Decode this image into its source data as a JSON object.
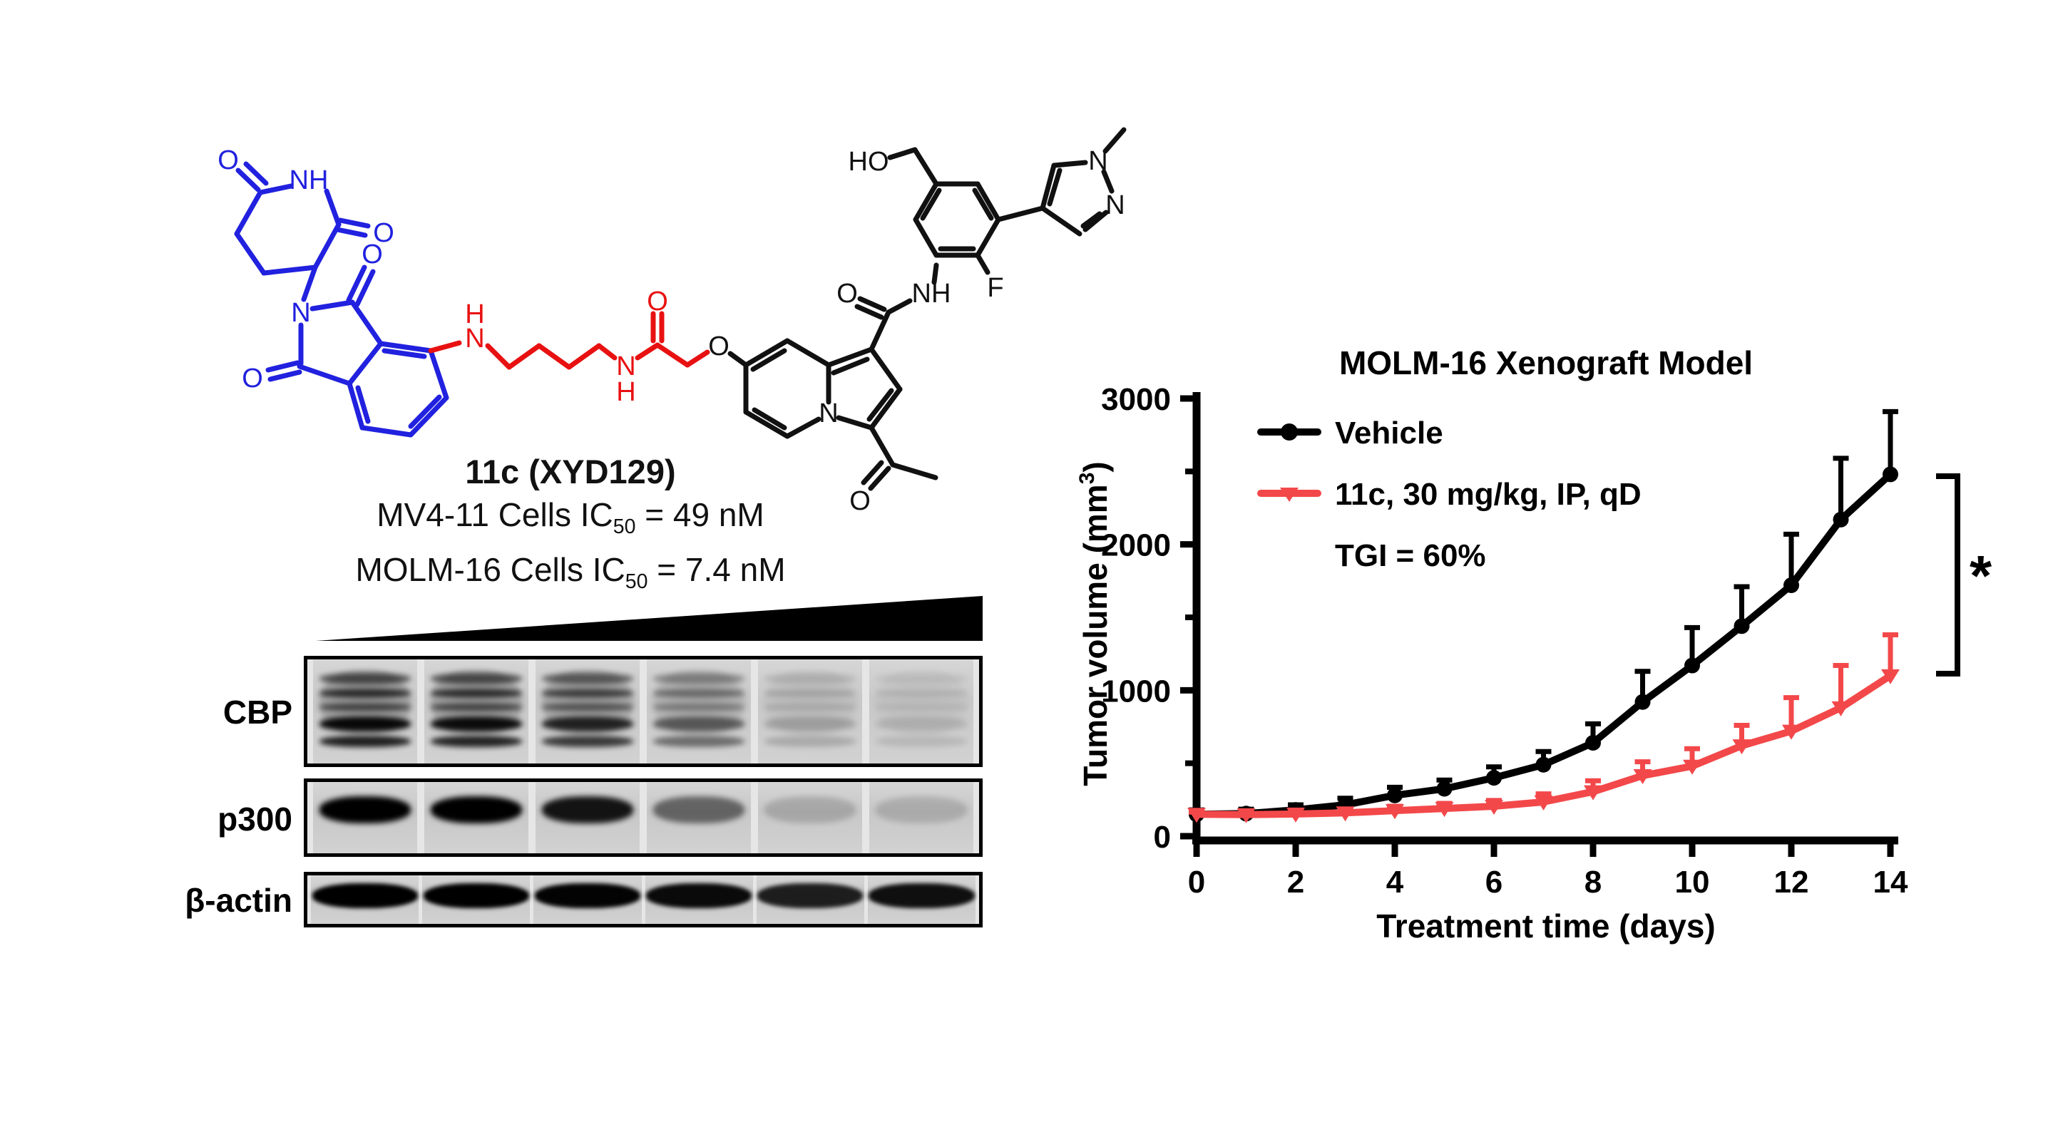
{
  "figure": {
    "compound": {
      "title": "11c (XYD129)",
      "ic50_lines": [
        {
          "prefix": "MV4-11 Cells IC",
          "sub": "50",
          "suffix": " = 49 nM"
        },
        {
          "prefix": "MOLM-16 Cells IC",
          "sub": "50",
          "suffix": " = 7.4 nM"
        }
      ],
      "structure_labels": {
        "O": "O",
        "NH": "NH",
        "N": "N",
        "H": "H",
        "HO": "HO",
        "F": "F"
      },
      "colors": {
        "crbn_ligand": "#2121DF",
        "linker": "#E81111",
        "warhead": "#111111"
      }
    },
    "blot": {
      "row_labels": [
        "CBP",
        "p300",
        "β-actin"
      ],
      "lanes": 6,
      "cbp_intensities": [
        1,
        0.98,
        0.85,
        0.55,
        0.2,
        0.12
      ],
      "p300_intensities": [
        1,
        1,
        0.9,
        0.5,
        0.16,
        0.14
      ],
      "actin_intensities": [
        1,
        1,
        0.98,
        0.95,
        0.85,
        0.92
      ]
    }
  },
  "chart_data": {
    "type": "line",
    "title": "MOLM-16 Xenograft Model",
    "xlabel": "Treatment time (days)",
    "ylabel": "Tumor volume (mm³)",
    "ylabel_parts": {
      "prefix": "Tumor volume (mm",
      "sup": "3",
      "suffix": ")"
    },
    "x": [
      0,
      1,
      2,
      3,
      4,
      5,
      6,
      7,
      8,
      9,
      10,
      11,
      12,
      13,
      14
    ],
    "series": [
      {
        "name": "Vehicle",
        "color": "#000000",
        "marker": "circle",
        "values": [
          150,
          155,
          180,
          215,
          280,
          325,
          400,
          490,
          640,
          920,
          1170,
          1440,
          1720,
          2170,
          2480
        ],
        "err_up": [
          30,
          30,
          35,
          45,
          55,
          60,
          75,
          90,
          130,
          210,
          260,
          270,
          350,
          420,
          430
        ]
      },
      {
        "name": "11c, 30 mg/kg, IP, qD",
        "color": "#F3484A",
        "marker": "triangle-down",
        "values": [
          150,
          148,
          152,
          160,
          175,
          190,
          205,
          235,
          305,
          415,
          480,
          620,
          720,
          880,
          1100
        ],
        "err_up": [
          15,
          15,
          18,
          22,
          30,
          35,
          40,
          55,
          75,
          95,
          120,
          140,
          230,
          290,
          280
        ]
      }
    ],
    "annotation": "TGI = 60%",
    "significance": "*",
    "xlim": [
      0,
      14
    ],
    "ylim": [
      0,
      3000
    ],
    "xticks": [
      0,
      2,
      4,
      6,
      8,
      10,
      12,
      14
    ],
    "yticks": [
      0,
      1000,
      2000,
      3000
    ],
    "yticks_minor": [
      500,
      1500,
      2500
    ],
    "legend_position": "top-left-inside",
    "grid": false
  }
}
